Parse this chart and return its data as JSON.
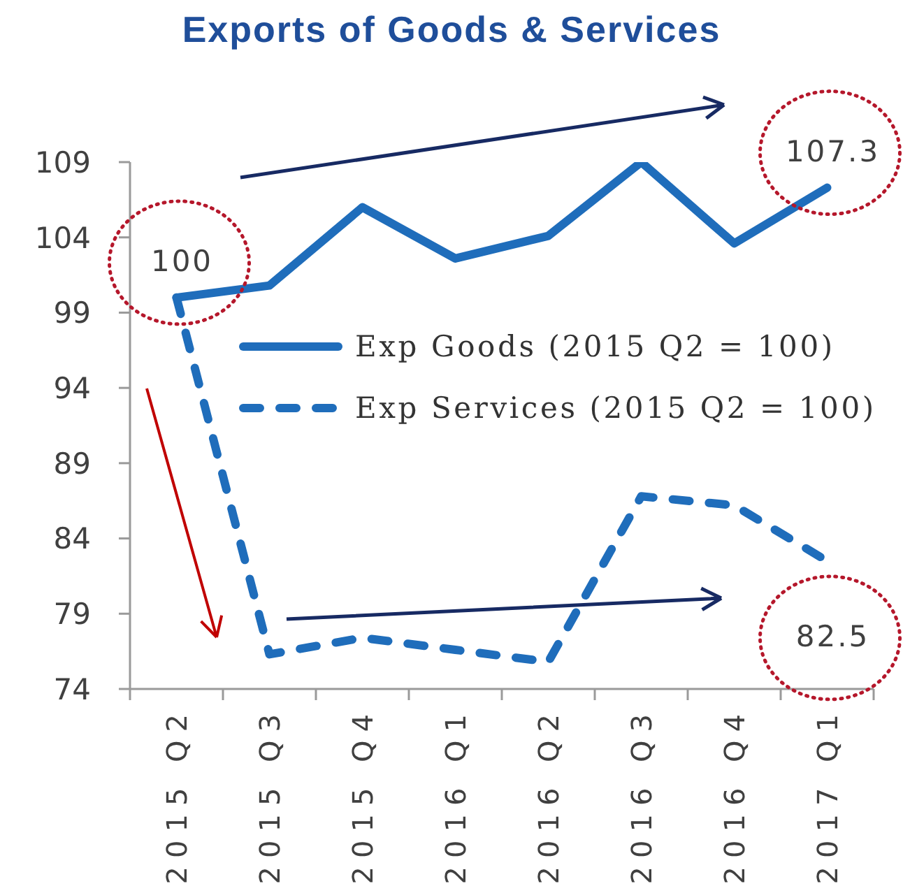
{
  "chart_data": {
    "type": "line",
    "title": "Exports of Goods & Services",
    "categories": [
      "2015 Q2",
      "2015 Q3",
      "2015 Q4",
      "2016 Q1",
      "2016 Q2",
      "2016 Q3",
      "2016 Q4",
      "2017 Q1"
    ],
    "series": [
      {
        "name": "Exp Goods (2015 Q2 = 100)",
        "color": "#1f6dbb",
        "line_style": "solid",
        "values": [
          100,
          100.8,
          106,
          102.6,
          104.1,
          109,
          103.6,
          107.3
        ]
      },
      {
        "name": "Exp Services (2015 Q2 = 100)",
        "color": "#1f6dbb",
        "line_style": "dashed",
        "values": [
          100,
          76.3,
          77.4,
          76.6,
          75.8,
          86.8,
          86.2,
          82.5
        ]
      }
    ],
    "ylim": [
      74,
      109
    ],
    "yticks": [
      74,
      79,
      84,
      89,
      94,
      99,
      104,
      109
    ],
    "legend": "right",
    "annotations": [
      {
        "text": "100",
        "x": "2015 Q2",
        "y": 100
      },
      {
        "text": "107.3",
        "x": "2017 Q1",
        "y": 107.3
      },
      {
        "text": "82.5",
        "x": "2017 Q1",
        "y": 82.5
      }
    ]
  }
}
